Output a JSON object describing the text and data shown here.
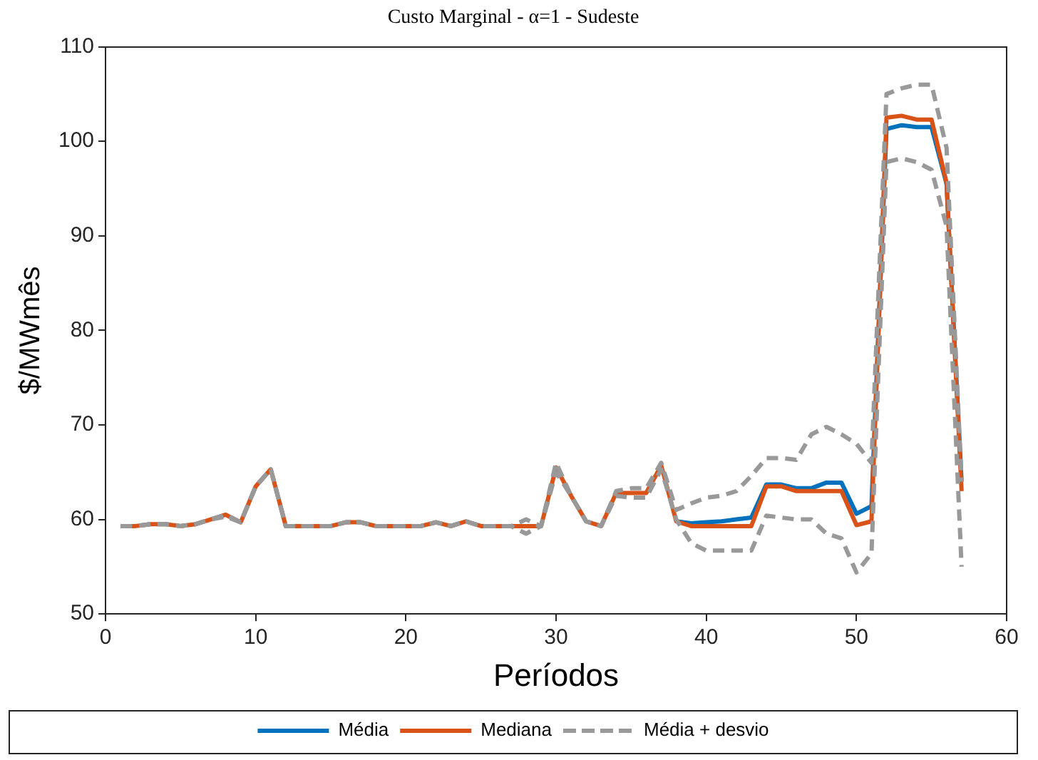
{
  "chart_data": {
    "type": "line",
    "title": "Custo Marginal - α=1 - Sudeste",
    "xlabel": "Períodos",
    "ylabel": "$/MWmês",
    "x": [
      1,
      2,
      3,
      4,
      5,
      6,
      7,
      8,
      9,
      10,
      11,
      12,
      13,
      14,
      15,
      16,
      17,
      18,
      19,
      20,
      21,
      22,
      23,
      24,
      25,
      26,
      27,
      28,
      29,
      30,
      31,
      32,
      33,
      34,
      35,
      36,
      37,
      38,
      39,
      40,
      41,
      42,
      43,
      44,
      45,
      46,
      47,
      48,
      49,
      50,
      51,
      52,
      53,
      54,
      55,
      56,
      57
    ],
    "series": [
      {
        "name": "Média",
        "color": "#0072bd",
        "line_style": "solid",
        "values": [
          null,
          null,
          null,
          null,
          null,
          null,
          null,
          null,
          null,
          null,
          null,
          null,
          null,
          null,
          null,
          null,
          null,
          null,
          null,
          null,
          null,
          null,
          null,
          null,
          null,
          null,
          null,
          null,
          null,
          null,
          null,
          null,
          null,
          null,
          null,
          null,
          null,
          59.8,
          59.6,
          59.7,
          59.8,
          60,
          60.2,
          63.7,
          63.7,
          63.3,
          63.3,
          63.9,
          63.9,
          60.6,
          61.4,
          101.3,
          101.7,
          101.5,
          101.5,
          95.5,
          64
        ]
      },
      {
        "name": "Mediana",
        "color": "#d95319",
        "line_style": "solid",
        "values": [
          59.3,
          59.3,
          59.5,
          59.5,
          59.3,
          59.5,
          60,
          60.5,
          59.7,
          63.5,
          65.3,
          59.3,
          59.3,
          59.3,
          59.3,
          59.7,
          59.7,
          59.3,
          59.3,
          59.3,
          59.3,
          59.7,
          59.3,
          59.8,
          59.3,
          59.3,
          59.3,
          59.3,
          59.3,
          65.5,
          62.5,
          59.8,
          59.3,
          62.8,
          62.8,
          62.8,
          65.7,
          59.8,
          59.3,
          59.3,
          59.3,
          59.3,
          59.3,
          63.5,
          63.5,
          63,
          63,
          63,
          63,
          59.4,
          59.8,
          102.5,
          102.7,
          102.3,
          102.3,
          95.6,
          63
        ]
      },
      {
        "name": "Média + desvio",
        "color": "#999999",
        "line_style": "dashed",
        "values": [
          59.3,
          59.3,
          59.5,
          59.5,
          59.3,
          59.5,
          60,
          60.5,
          59.7,
          63.5,
          65.3,
          59.3,
          59.3,
          59.3,
          59.3,
          59.7,
          59.7,
          59.3,
          59.3,
          59.3,
          59.3,
          59.7,
          59.3,
          59.8,
          59.3,
          59.3,
          59.3,
          60,
          59.3,
          66,
          62.5,
          59.8,
          59.3,
          63,
          63.3,
          63.3,
          66,
          61,
          61.7,
          62.3,
          62.5,
          63,
          64.6,
          66.5,
          66.5,
          66.3,
          69,
          69.8,
          69,
          68,
          66,
          105,
          105.6,
          106,
          106,
          99.3,
          64
        ]
      },
      {
        "color": "#999999",
        "line_style": "dashed",
        "values": [
          59.3,
          59.3,
          59.5,
          59.5,
          59.3,
          59.5,
          60,
          60.3,
          59.7,
          63.5,
          65.3,
          59.3,
          59.3,
          59.3,
          59.3,
          59.7,
          59.7,
          59.3,
          59.3,
          59.3,
          59.3,
          59.7,
          59.3,
          59.8,
          59.3,
          59.3,
          59.3,
          58.5,
          59.3,
          65,
          62.5,
          59.8,
          59.3,
          62.5,
          62.3,
          62.3,
          65.3,
          60,
          57.5,
          56.7,
          56.7,
          56.7,
          56.7,
          60.4,
          60.2,
          60,
          60,
          58.5,
          58,
          54.4,
          56.4,
          97.8,
          98.2,
          97.8,
          97,
          91,
          55
        ]
      }
    ],
    "xlim": [
      0,
      60
    ],
    "xticks": [
      0,
      10,
      20,
      30,
      40,
      50,
      60
    ],
    "ylim": [
      50,
      110
    ],
    "yticks": [
      50,
      60,
      70,
      80,
      90,
      100,
      110
    ],
    "legend": "bottom",
    "grid": false,
    "marker": "none"
  }
}
